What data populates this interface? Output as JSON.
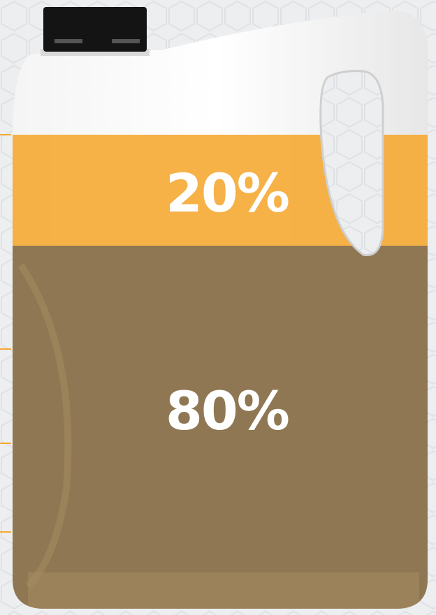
{
  "segments": [
    {
      "label": "20%"
    },
    {
      "label": "80%"
    }
  ]
}
